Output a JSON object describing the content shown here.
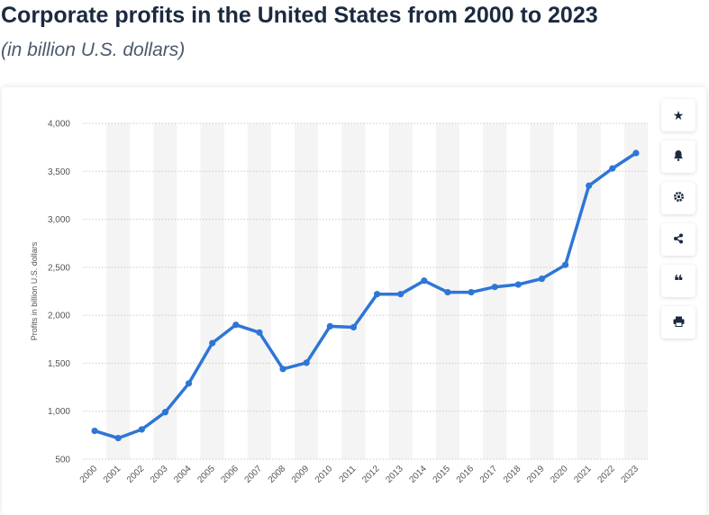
{
  "header": {
    "title": "Corporate profits in the United States from 2000 to 2023",
    "subtitle": "(in billion U.S. dollars)"
  },
  "toolbar": {
    "buttons": [
      {
        "name": "favorite-button",
        "icon": "star-icon"
      },
      {
        "name": "notification-button",
        "icon": "bell-icon"
      },
      {
        "name": "settings-button",
        "icon": "gear-icon"
      },
      {
        "name": "share-button",
        "icon": "share-icon"
      },
      {
        "name": "cite-button",
        "icon": "quote-icon"
      },
      {
        "name": "print-button",
        "icon": "printer-icon"
      }
    ]
  },
  "chart_data": {
    "type": "line",
    "categories": [
      "2000",
      "2001",
      "2002",
      "2003",
      "2004",
      "2005",
      "2006",
      "2007",
      "2008",
      "2009",
      "2010",
      "2011",
      "2012",
      "2013",
      "2014",
      "2015",
      "2016",
      "2017",
      "2018",
      "2019",
      "2020",
      "2021",
      "2022",
      "2023"
    ],
    "series": [
      {
        "values": [
          795,
          720,
          810,
          990,
          1290,
          1710,
          1900,
          1820,
          1440,
          1505,
          1885,
          1875,
          2220,
          2220,
          2360,
          2240,
          2240,
          2295,
          2320,
          2380,
          2525,
          3350,
          3530,
          3690
        ]
      }
    ],
    "ylabel": "Profits in billion U.S. dollars",
    "ylim": [
      500,
      4000
    ],
    "yticks": [
      500,
      1000,
      1500,
      2000,
      2500,
      3000,
      3500,
      4000
    ],
    "ytick_labels": [
      "500",
      "1,000",
      "1,500",
      "2,000",
      "2,500",
      "3,000",
      "3,500",
      "4,000"
    ],
    "grid": true,
    "colors": {
      "line": "#2e76d6",
      "grid": "#c9c9c9",
      "band": "#f4f4f4",
      "axis_text": "#555555"
    }
  }
}
